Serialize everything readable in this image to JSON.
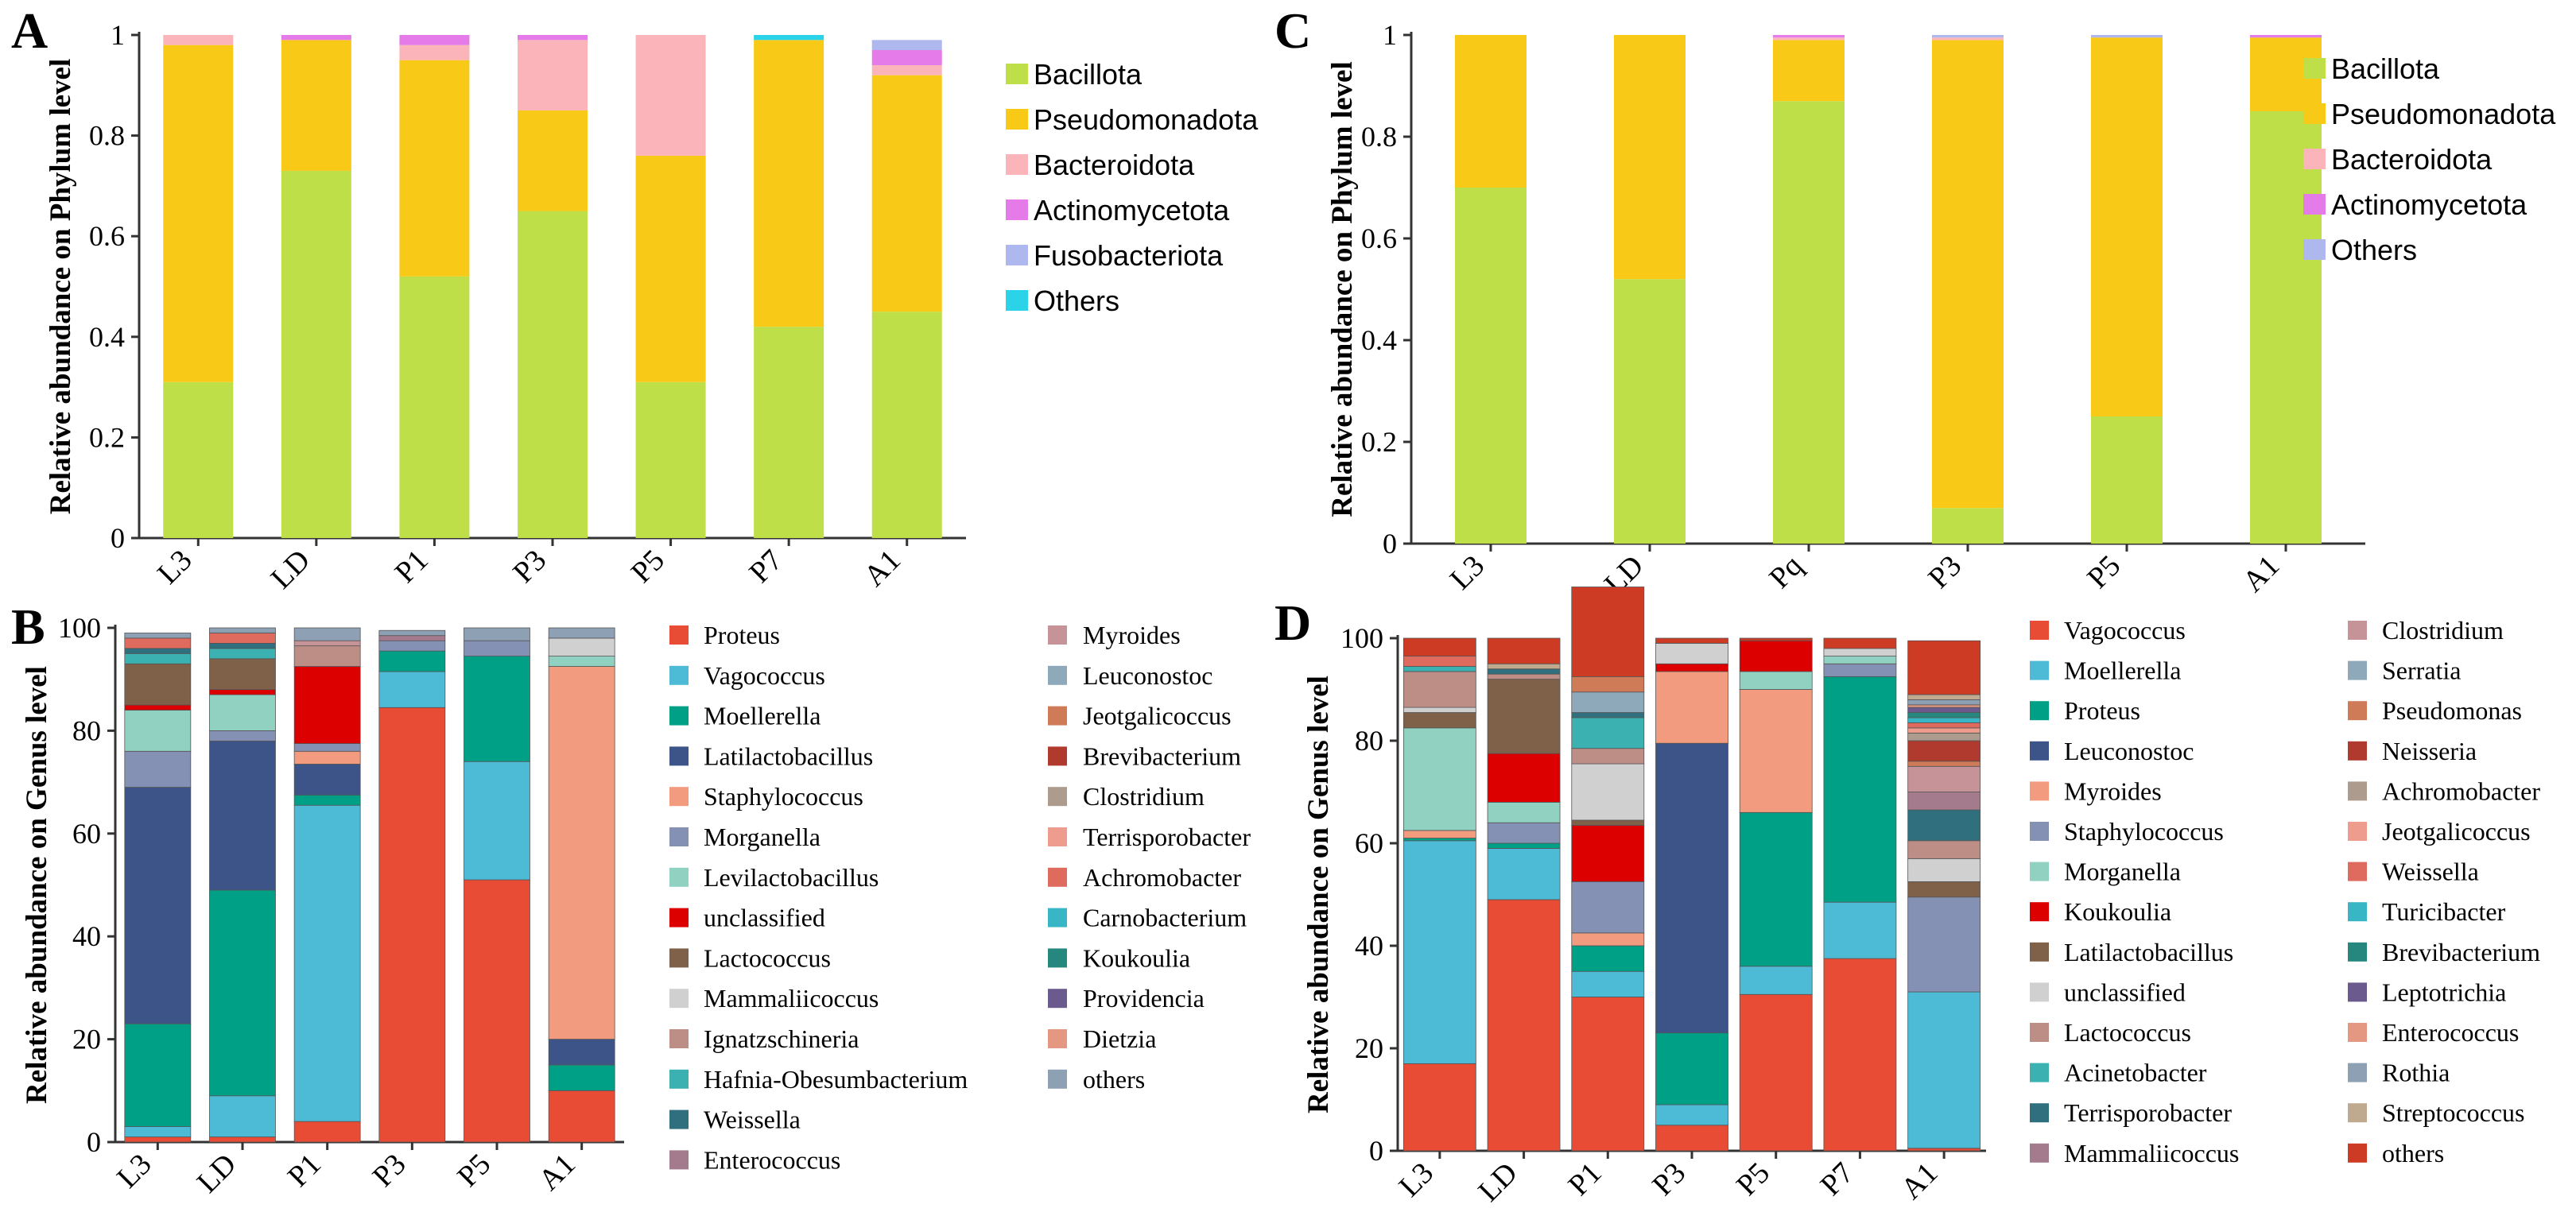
{
  "chart_data": [
    {
      "panel": "A",
      "type": "bar",
      "stacked": true,
      "ylabel": "Relative abundance on Phylum level",
      "ylim": [
        0,
        1
      ],
      "yticks": [
        "0",
        "0.2",
        "0.4",
        "0.6",
        "0.8",
        "1"
      ],
      "categories": [
        "L3",
        "LD",
        "P1",
        "P3",
        "P5",
        "P7",
        "A1"
      ],
      "legend_position": "right",
      "series": [
        {
          "name": "Bacillota",
          "color": "#BEDF47",
          "values": [
            0.31,
            0.73,
            0.52,
            0.65,
            0.31,
            0.42,
            0.45
          ]
        },
        {
          "name": "Pseudomonadota",
          "color": "#F8C916",
          "values": [
            0.67,
            0.26,
            0.43,
            0.2,
            0.45,
            0.57,
            0.47
          ]
        },
        {
          "name": "Bacteroidota",
          "color": "#FBB4B9",
          "values": [
            0.02,
            0.0,
            0.03,
            0.14,
            0.24,
            0.0,
            0.02
          ]
        },
        {
          "name": "Actinomycetota",
          "color": "#E57BE8",
          "values": [
            0.0,
            0.01,
            0.02,
            0.01,
            0.0,
            0.0,
            0.03
          ]
        },
        {
          "name": "Fusobacteriota",
          "color": "#AEB8EE",
          "values": [
            0.0,
            0.0,
            0.0,
            0.0,
            0.0,
            0.0,
            0.02
          ]
        },
        {
          "name": "Others",
          "color": "#2AD3E8",
          "values": [
            0.0,
            0.0,
            0.0,
            0.0,
            0.0,
            0.01,
            0.0
          ]
        }
      ]
    },
    {
      "panel": "C",
      "type": "bar",
      "stacked": true,
      "ylabel": "Relative abundance on Phylum level",
      "ylim": [
        0,
        1
      ],
      "yticks": [
        "0",
        "0.2",
        "0.4",
        "0.6",
        "0.8",
        "1"
      ],
      "categories": [
        "L3",
        "LD",
        "Pq",
        "P3",
        "P5",
        "A1"
      ],
      "legend_position": "right",
      "series": [
        {
          "name": "Bacillota",
          "color": "#BEDF47",
          "values": [
            0.7,
            0.52,
            0.87,
            0.07,
            0.25,
            0.85
          ]
        },
        {
          "name": "Pseudomonadota",
          "color": "#F8C916",
          "values": [
            0.3,
            0.48,
            0.12,
            0.92,
            0.745,
            0.145
          ]
        },
        {
          "name": "Bacteroidota",
          "color": "#FBB4B9",
          "values": [
            0.0,
            0.0,
            0.005,
            0.005,
            0.0,
            0.0
          ]
        },
        {
          "name": "Actinomycetota",
          "color": "#E57BE8",
          "values": [
            0.0,
            0.0,
            0.005,
            0.0,
            0.0,
            0.005
          ]
        },
        {
          "name": "Others",
          "color": "#AEB8EE",
          "values": [
            0.0,
            0.0,
            0.0,
            0.005,
            0.005,
            0.0
          ]
        }
      ]
    },
    {
      "panel": "B",
      "type": "bar",
      "stacked": true,
      "ylabel": "Relative abundance on Genus level",
      "ylim": [
        0,
        100
      ],
      "yticks": [
        "0",
        "20",
        "40",
        "60",
        "80",
        "100"
      ],
      "categories": [
        "L3",
        "LD",
        "P1",
        "P3",
        "P5",
        "A1"
      ],
      "legend_position": "right",
      "legend_columns": [
        [
          "Proteus",
          "Vagococcus",
          "Moellerella",
          "Latilactobacillus",
          "Staphylococcus",
          "Morganella",
          "Levilactobacillus",
          "unclassified",
          "Lactococcus",
          "Mammaliicoccus",
          "Ignatzschineria",
          "Hafnia-Obesumbacterium",
          "Weissella",
          "Enterococcus"
        ],
        [
          "Myroides",
          "Leuconostoc",
          "Jeotgalicoccus",
          "Brevibacterium",
          "Clostridium",
          "Terrisporobacter",
          "Achromobacter",
          "Carnobacterium",
          "Koukoulia",
          "Providencia",
          "Dietzia",
          "others"
        ]
      ],
      "series": [
        {
          "name": "Proteus",
          "color": "#E84C35",
          "values": [
            1,
            1,
            4,
            84.5,
            51,
            10
          ]
        },
        {
          "name": "Vagococcus",
          "color": "#4DBBD6",
          "values": [
            2,
            8,
            61.5,
            7,
            23,
            0
          ]
        },
        {
          "name": "Moellerella",
          "color": "#00A087",
          "values": [
            20,
            40,
            2,
            4,
            20.5,
            5
          ]
        },
        {
          "name": "Latilactobacillus",
          "color": "#3C5488",
          "values": [
            46,
            29,
            6,
            0,
            0,
            5
          ]
        },
        {
          "name": "Staphylococcus",
          "color": "#F39B7F",
          "values": [
            0,
            0,
            2.5,
            0,
            0,
            72.5
          ]
        },
        {
          "name": "Morganella",
          "color": "#8491B4",
          "values": [
            7,
            2,
            1.5,
            2,
            3,
            0
          ]
        },
        {
          "name": "Levilactobacillus",
          "color": "#91D1C2",
          "values": [
            8,
            7,
            0,
            0,
            0,
            2
          ]
        },
        {
          "name": "unclassified",
          "color": "#DC0000",
          "values": [
            1,
            1,
            15,
            0,
            0,
            0
          ]
        },
        {
          "name": "Lactococcus",
          "color": "#7E6148",
          "values": [
            8,
            6,
            0,
            0,
            0,
            0
          ]
        },
        {
          "name": "Mammaliicoccus",
          "color": "#D0D0D0",
          "values": [
            0,
            0,
            0,
            0,
            0,
            3.5
          ]
        },
        {
          "name": "Ignatzschineria",
          "color": "#BC8E86",
          "values": [
            0,
            0,
            4,
            0,
            0,
            0
          ]
        },
        {
          "name": "Hafnia-Obesumbacterium",
          "color": "#3BB1B1",
          "values": [
            2,
            2,
            0,
            0,
            0,
            0
          ]
        },
        {
          "name": "Weissella",
          "color": "#2F6F7E",
          "values": [
            1,
            1,
            0,
            0,
            0,
            0
          ]
        },
        {
          "name": "Enterococcus",
          "color": "#A47A8D",
          "values": [
            0,
            0,
            0,
            1,
            0,
            0
          ]
        },
        {
          "name": "Myroides",
          "color": "#C69399",
          "values": [
            0,
            0,
            1,
            0,
            0,
            0
          ]
        },
        {
          "name": "Leuconostoc",
          "color": "#8DA9BA",
          "values": [
            0,
            0,
            0,
            0,
            0,
            0
          ]
        },
        {
          "name": "Jeotgalicoccus",
          "color": "#D07B58",
          "values": [
            0,
            0,
            0,
            0,
            0,
            0
          ]
        },
        {
          "name": "Brevibacterium",
          "color": "#B03A2E",
          "values": [
            0,
            0,
            0,
            0,
            0,
            0
          ]
        },
        {
          "name": "Clostridium",
          "color": "#AD9B8E",
          "values": [
            0,
            0,
            0,
            0,
            0,
            0
          ]
        },
        {
          "name": "Terrisporobacter",
          "color": "#EE9C8D",
          "values": [
            0,
            0,
            0,
            0,
            0,
            0
          ]
        },
        {
          "name": "Achromobacter",
          "color": "#DF6B5F",
          "values": [
            2,
            2,
            0,
            0,
            0,
            0
          ]
        },
        {
          "name": "Carnobacterium",
          "color": "#39B6C5",
          "values": [
            0,
            0,
            0,
            0,
            0,
            0
          ]
        },
        {
          "name": "Koukoulia",
          "color": "#26877E",
          "values": [
            0,
            0,
            0,
            0,
            0,
            0
          ]
        },
        {
          "name": "Providencia",
          "color": "#6B5A8E",
          "values": [
            0,
            0,
            0,
            0,
            0,
            0
          ]
        },
        {
          "name": "Dietzia",
          "color": "#E49882",
          "values": [
            0,
            0,
            0,
            0,
            0,
            0
          ]
        },
        {
          "name": "others",
          "color": "#8EA0B3",
          "values": [
            1,
            1,
            2.5,
            1,
            2.5,
            2
          ]
        }
      ]
    },
    {
      "panel": "D",
      "type": "bar",
      "stacked": true,
      "ylabel": "Relative abundance on Genus level",
      "ylim": [
        0,
        100
      ],
      "yticks": [
        "0",
        "20",
        "40",
        "60",
        "80",
        "100"
      ],
      "categories": [
        "L3",
        "LD",
        "P1",
        "P3",
        "P5",
        "P7",
        "A1"
      ],
      "legend_position": "right",
      "legend_columns": [
        [
          "Vagococcus",
          "Moellerella",
          "Proteus",
          "Leuconostoc",
          "Myroides",
          "Staphylococcus",
          "Morganella",
          "Koukoulia",
          "Latilactobacillus",
          "unclassified",
          "Lactococcus",
          "Acinetobacter",
          "Terrisporobacter",
          "Mammaliicoccus"
        ],
        [
          "Clostridium",
          "Serratia",
          "Pseudomonas",
          "Neisseria",
          "Achromobacter",
          "Jeotgalicoccus",
          "Weissella",
          "Turicibacter",
          "Brevibacterium",
          "Leptotrichia",
          "Enterococcus",
          "Rothia",
          "Streptococcus",
          "others"
        ]
      ],
      "series": [
        {
          "name": "Vagococcus",
          "color": "#E84C35",
          "values": [
            17,
            49,
            30,
            5,
            30.5,
            37.5,
            0.5
          ]
        },
        {
          "name": "Moellerella",
          "color": "#4DBBD6",
          "values": [
            43.5,
            10,
            5,
            4,
            5.5,
            11,
            30.5
          ]
        },
        {
          "name": "Proteus",
          "color": "#00A087",
          "values": [
            0.5,
            1,
            5,
            14,
            30,
            44,
            0
          ]
        },
        {
          "name": "Leuconostoc",
          "color": "#3C5488",
          "values": [
            0,
            0,
            0,
            56.5,
            0,
            0,
            0
          ]
        },
        {
          "name": "Myroides",
          "color": "#F39B7F",
          "values": [
            1.5,
            0,
            2.5,
            14,
            24,
            0,
            0
          ]
        },
        {
          "name": "Staphylococcus",
          "color": "#8491B4",
          "values": [
            0,
            4,
            10,
            0,
            0,
            2.5,
            18.5
          ]
        },
        {
          "name": "Morganella",
          "color": "#91D1C2",
          "values": [
            20,
            4,
            0,
            0,
            3.5,
            1.5,
            0
          ]
        },
        {
          "name": "Koukoulia",
          "color": "#DC0000",
          "values": [
            0,
            9.5,
            11,
            1.5,
            6,
            0,
            0
          ]
        },
        {
          "name": "Latilactobacillus",
          "color": "#7E6148",
          "values": [
            3,
            14.5,
            1,
            0,
            0,
            0,
            3
          ]
        },
        {
          "name": "unclassified",
          "color": "#D0D0D0",
          "values": [
            1,
            0,
            11,
            4,
            0,
            1.5,
            4.5
          ]
        },
        {
          "name": "Lactococcus",
          "color": "#BC8E86",
          "values": [
            7,
            1,
            3,
            0,
            0,
            0,
            3.5
          ]
        },
        {
          "name": "Acinetobacter",
          "color": "#3BB1B1",
          "values": [
            1,
            0,
            6,
            0,
            0,
            0,
            0
          ]
        },
        {
          "name": "Terrisporobacter",
          "color": "#2F6F7E",
          "values": [
            0,
            1,
            1,
            0,
            0,
            0,
            6
          ]
        },
        {
          "name": "Mammaliicoccus",
          "color": "#A47A8D",
          "values": [
            0,
            0,
            0,
            0,
            0,
            0,
            3.5
          ]
        },
        {
          "name": "Clostridium",
          "color": "#C69399",
          "values": [
            0,
            0,
            0,
            0,
            0,
            0,
            5
          ]
        },
        {
          "name": "Serratia",
          "color": "#8DA9BA",
          "values": [
            0,
            0,
            4,
            0,
            0,
            0,
            0
          ]
        },
        {
          "name": "Pseudomonas",
          "color": "#D07B58",
          "values": [
            0,
            0,
            3,
            0,
            0,
            0,
            1
          ]
        },
        {
          "name": "Neisseria",
          "color": "#B03A2E",
          "values": [
            0,
            0,
            0,
            0,
            0,
            0,
            4
          ]
        },
        {
          "name": "Achromobacter",
          "color": "#AD9B8E",
          "values": [
            0,
            0,
            0,
            0,
            0,
            0,
            1.5
          ]
        },
        {
          "name": "Jeotgalicoccus",
          "color": "#EE9C8D",
          "values": [
            0,
            0,
            0,
            0,
            0,
            0,
            1
          ]
        },
        {
          "name": "Weissella",
          "color": "#DF6B5F",
          "values": [
            2,
            0,
            0,
            0,
            0,
            0,
            1
          ]
        },
        {
          "name": "Turicibacter",
          "color": "#39B6C5",
          "values": [
            0,
            0,
            0,
            0,
            0,
            0,
            1
          ]
        },
        {
          "name": "Brevibacterium",
          "color": "#26877E",
          "values": [
            0,
            0,
            0,
            0,
            0,
            0,
            1
          ]
        },
        {
          "name": "Leptotrichia",
          "color": "#6B5A8E",
          "values": [
            0,
            0,
            0,
            0,
            0,
            0,
            1
          ]
        },
        {
          "name": "Enterococcus",
          "color": "#E49882",
          "values": [
            0,
            0,
            0,
            0,
            0,
            0,
            0.5
          ]
        },
        {
          "name": "Rothia",
          "color": "#8EA0B3",
          "values": [
            0,
            0,
            0,
            0,
            0,
            0,
            1
          ]
        },
        {
          "name": "Streptococcus",
          "color": "#BFA98F",
          "values": [
            0,
            1,
            0,
            0,
            0,
            0,
            1
          ]
        },
        {
          "name": "others",
          "color": "#CE3B25",
          "values": [
            3.5,
            5,
            17.5,
            1,
            0.5,
            2,
            10.5
          ]
        }
      ]
    }
  ]
}
